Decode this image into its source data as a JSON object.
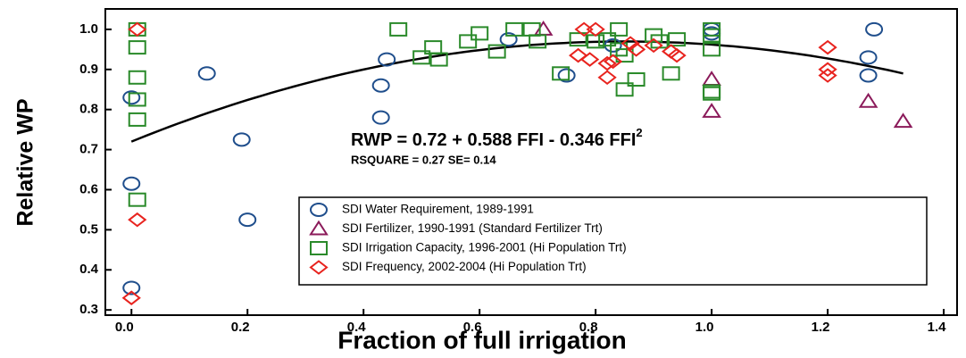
{
  "chart_data": {
    "type": "scatter",
    "xlabel": "Fraction of full irrigation",
    "ylabel": "Relative WP",
    "xlim": [
      -0.045,
      1.423
    ],
    "ylim": [
      0.287,
      1.051
    ],
    "xticks": [
      {
        "value": 0,
        "label": "0.0"
      },
      0.2,
      0.4,
      0.6,
      0.8,
      {
        "value": 1,
        "label": "1.0"
      },
      1.2,
      1.4
    ],
    "yticks": [
      {
        "value": 0.3,
        "label": "0.3"
      },
      0.4,
      0.5,
      0.6,
      0.7,
      0.8,
      0.9,
      {
        "value": 1,
        "label": "1.0"
      }
    ],
    "legend": "bottom-right",
    "fit": {
      "coefficients": [
        0.72,
        0.588,
        -0.346
      ],
      "x_range": [
        0,
        1.33
      ],
      "color": "#000000"
    },
    "annotations": [
      {
        "text": "RWP = 0.72 + 0.588 FFI - 0.346 FFI",
        "superscript": "2"
      },
      {
        "text": "RSQUARE = 0.27   SE= 0.14"
      }
    ],
    "series": [
      {
        "name": "SDI Water Requirement, 1989-1991",
        "marker": "circle",
        "color": "#1f4e8c",
        "x": [
          0,
          0,
          0,
          0.13,
          0.19,
          0.2,
          0.43,
          0.43,
          0.44,
          0.65,
          0.75,
          0.83,
          1.0,
          1.0,
          1.27,
          1.27,
          1.28
        ],
        "values": [
          0.83,
          0.615,
          0.355,
          0.89,
          0.725,
          0.525,
          0.86,
          0.78,
          0.925,
          0.975,
          0.885,
          0.96,
          1.0,
          0.99,
          0.93,
          0.885,
          1.0
        ]
      },
      {
        "name": "SDI Fertilizer, 1990-1991  (Standard Fertilizer Trt)",
        "marker": "triangle",
        "color": "#8b1a5a",
        "x": [
          0.71,
          1.0,
          1.0,
          1.27,
          1.33
        ],
        "values": [
          1.0,
          0.875,
          0.795,
          0.82,
          0.77
        ]
      },
      {
        "name": "SDI Irrigation Capacity,  1996-2001 (Hi Population Trt)",
        "marker": "square",
        "color": "#2a8a2a",
        "x": [
          0.01,
          0.01,
          0.01,
          0.01,
          0.01,
          0.01,
          0.46,
          0.5,
          0.52,
          0.53,
          0.58,
          0.6,
          0.63,
          0.66,
          0.69,
          0.7,
          0.74,
          0.77,
          0.8,
          0.82,
          0.84,
          0.84,
          0.85,
          0.85,
          0.87,
          0.9,
          0.91,
          0.93,
          0.94,
          1.0,
          1.0,
          1.0,
          1.0,
          1.0
        ],
        "values": [
          1.0,
          0.955,
          0.88,
          0.825,
          0.775,
          0.575,
          1.0,
          0.93,
          0.955,
          0.925,
          0.97,
          0.99,
          0.945,
          1.0,
          1.0,
          0.97,
          0.89,
          0.975,
          0.97,
          0.975,
          1.0,
          0.95,
          0.935,
          0.85,
          0.875,
          0.985,
          0.97,
          0.89,
          0.975,
          1.0,
          0.985,
          0.95,
          0.845,
          0.84
        ]
      },
      {
        "name": "SDI Frequency, 2002-2004 (Hi Population Trt)",
        "marker": "diamond",
        "color": "#e8231e",
        "x": [
          0.01,
          0.01,
          0,
          0.77,
          0.78,
          0.79,
          0.8,
          0.82,
          0.83,
          0.82,
          0.86,
          0.87,
          0.9,
          0.93,
          0.94,
          1.2,
          1.2,
          1.2
        ],
        "values": [
          1.0,
          0.525,
          0.33,
          0.935,
          1.0,
          0.925,
          1.0,
          0.915,
          0.92,
          0.88,
          0.965,
          0.95,
          0.96,
          0.945,
          0.935,
          0.955,
          0.9,
          0.885
        ]
      }
    ]
  }
}
